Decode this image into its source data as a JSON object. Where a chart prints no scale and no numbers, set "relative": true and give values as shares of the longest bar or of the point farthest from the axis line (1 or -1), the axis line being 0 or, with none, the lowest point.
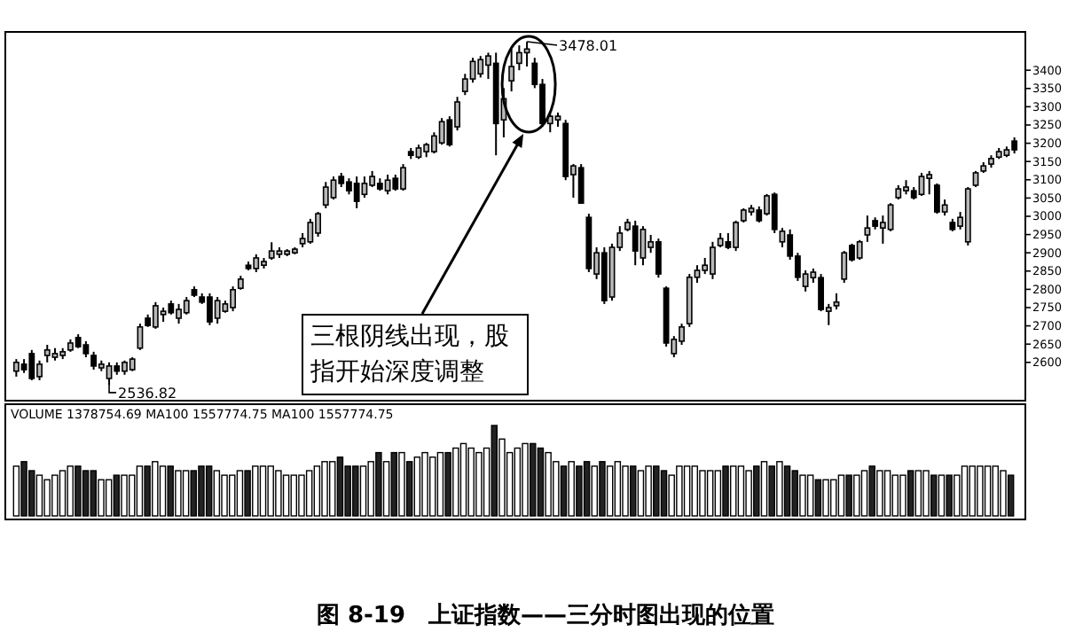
{
  "chart_data": [
    {
      "type": "candlestick",
      "title": "图 8-19　上证指数——三分时图出现的位置",
      "categories": [
        null,
        null,
        null,
        null,
        null,
        null,
        null,
        null,
        null,
        null,
        null,
        null,
        null,
        null,
        null,
        null,
        null,
        null,
        null,
        null,
        null,
        null,
        null,
        null,
        null,
        null,
        null,
        null,
        null,
        null,
        null,
        null,
        null,
        null,
        null,
        null,
        null,
        null,
        null,
        null,
        null,
        null,
        null,
        null,
        null,
        null,
        null,
        null,
        null,
        null,
        null,
        null,
        null,
        null,
        null,
        null,
        null,
        null,
        null,
        null,
        null,
        null,
        null,
        null,
        null,
        null,
        null,
        null,
        null,
        null,
        null,
        null,
        null,
        null,
        null,
        null,
        null,
        null,
        null,
        null,
        null,
        null,
        null,
        null,
        null,
        null,
        null,
        null,
        null,
        null,
        null,
        null,
        null,
        null,
        null,
        null,
        null,
        null,
        null,
        null,
        null,
        null,
        null,
        null,
        null,
        null,
        null,
        null,
        null,
        null,
        null,
        null,
        null,
        null,
        null,
        null,
        null,
        null,
        null,
        null,
        null,
        null,
        null,
        null,
        null,
        null,
        null,
        null,
        null,
        null
      ],
      "ohlc": [
        [
          2576,
          2609,
          2561,
          2600
        ],
        [
          2595,
          2609,
          2571,
          2580
        ],
        [
          2624,
          2634,
          2551,
          2556
        ],
        [
          2561,
          2605,
          2551,
          2595
        ],
        [
          2619,
          2648,
          2600,
          2634
        ],
        [
          2614,
          2639,
          2605,
          2624
        ],
        [
          2619,
          2639,
          2609,
          2629
        ],
        [
          2634,
          2663,
          2629,
          2653
        ],
        [
          2668,
          2677,
          2639,
          2643
        ],
        [
          2648,
          2658,
          2614,
          2624
        ],
        [
          2619,
          2629,
          2580,
          2590
        ],
        [
          2585,
          2605,
          2576,
          2595
        ],
        [
          2556,
          2600,
          2536.82,
          2590
        ],
        [
          2590,
          2600,
          2566,
          2576
        ],
        [
          2576,
          2605,
          2566,
          2600
        ],
        [
          2580,
          2614,
          2576,
          2609
        ],
        [
          2639,
          2706,
          2634,
          2697
        ],
        [
          2721,
          2731,
          2697,
          2701
        ],
        [
          2697,
          2765,
          2692,
          2755
        ],
        [
          2731,
          2750,
          2711,
          2740
        ],
        [
          2760,
          2769,
          2731,
          2736
        ],
        [
          2721,
          2760,
          2706,
          2745
        ],
        [
          2736,
          2779,
          2731,
          2769
        ],
        [
          2799,
          2808,
          2779,
          2784
        ],
        [
          2779,
          2789,
          2760,
          2765
        ],
        [
          2779,
          2789,
          2702,
          2711
        ],
        [
          2721,
          2779,
          2706,
          2769
        ],
        [
          2740,
          2769,
          2736,
          2760
        ],
        [
          2750,
          2808,
          2740,
          2799
        ],
        [
          2803,
          2837,
          2799,
          2828
        ],
        [
          2866,
          2876,
          2852,
          2857
        ],
        [
          2857,
          2896,
          2847,
          2886
        ],
        [
          2866,
          2886,
          2857,
          2876
        ],
        [
          2886,
          2929,
          2881,
          2905
        ],
        [
          2896,
          2915,
          2886,
          2905
        ],
        [
          2896,
          2910,
          2891,
          2905
        ],
        [
          2900,
          2915,
          2896,
          2910
        ],
        [
          2925,
          2954,
          2915,
          2939
        ],
        [
          2930,
          2993,
          2925,
          2983
        ],
        [
          2954,
          3012,
          2944,
          3007
        ],
        [
          3031,
          3094,
          3022,
          3080
        ],
        [
          3051,
          3109,
          3046,
          3099
        ],
        [
          3109,
          3119,
          3080,
          3090
        ],
        [
          3094,
          3104,
          3060,
          3070
        ],
        [
          3090,
          3109,
          3022,
          3041
        ],
        [
          3060,
          3109,
          3051,
          3090
        ],
        [
          3085,
          3124,
          3080,
          3109
        ],
        [
          3090,
          3104,
          3070,
          3075
        ],
        [
          3070,
          3114,
          3060,
          3099
        ],
        [
          3104,
          3114,
          3070,
          3075
        ],
        [
          3075,
          3143,
          3070,
          3133
        ],
        [
          3177,
          3187,
          3157,
          3167
        ],
        [
          3162,
          3196,
          3157,
          3187
        ],
        [
          3177,
          3201,
          3162,
          3196
        ],
        [
          3177,
          3230,
          3172,
          3220
        ],
        [
          3201,
          3269,
          3196,
          3259
        ],
        [
          3264,
          3274,
          3191,
          3196
        ],
        [
          3245,
          3327,
          3235,
          3313
        ],
        [
          3342,
          3390,
          3332,
          3376
        ],
        [
          3376,
          3434,
          3366,
          3424
        ],
        [
          3390,
          3439,
          3380,
          3429
        ],
        [
          3414,
          3448,
          3376,
          3439
        ],
        [
          3419,
          3448,
          3167,
          3254
        ],
        [
          3264,
          3351,
          3216,
          3322
        ],
        [
          3371,
          3458,
          3342,
          3410
        ],
        [
          3419,
          3468,
          3400,
          3448
        ],
        [
          3448,
          3478.01,
          3410,
          3458
        ],
        [
          3419,
          3434,
          3351,
          3361
        ],
        [
          3361,
          3376,
          3245,
          3254
        ],
        [
          3254,
          3284,
          3230,
          3274
        ],
        [
          3264,
          3284,
          3245,
          3274
        ],
        [
          3254,
          3264,
          3099,
          3109
        ],
        [
          3114,
          3143,
          3051,
          3138
        ],
        [
          3133,
          3143,
          3036,
          3036
        ],
        [
          2997,
          3007,
          2847,
          2857
        ],
        [
          2842,
          2915,
          2828,
          2900
        ],
        [
          2900,
          2915,
          2760,
          2769
        ],
        [
          2779,
          2925,
          2769,
          2915
        ],
        [
          2915,
          2973,
          2905,
          2954
        ],
        [
          2964,
          2993,
          2959,
          2983
        ],
        [
          2973,
          2988,
          2866,
          2905
        ],
        [
          2886,
          2973,
          2866,
          2964
        ],
        [
          2915,
          2949,
          2900,
          2930
        ],
        [
          2930,
          2939,
          2832,
          2842
        ],
        [
          2803,
          2808,
          2643,
          2653
        ],
        [
          2624,
          2672,
          2614,
          2663
        ],
        [
          2658,
          2706,
          2648,
          2697
        ],
        [
          2706,
          2842,
          2697,
          2833
        ],
        [
          2833,
          2866,
          2818,
          2852
        ],
        [
          2852,
          2886,
          2842,
          2866
        ],
        [
          2842,
          2930,
          2828,
          2915
        ],
        [
          2920,
          2954,
          2915,
          2939
        ],
        [
          2930,
          2954,
          2910,
          2915
        ],
        [
          2915,
          2988,
          2905,
          2983
        ],
        [
          2988,
          3022,
          2983,
          3017
        ],
        [
          3012,
          3031,
          3002,
          3022
        ],
        [
          3017,
          3027,
          2983,
          2988
        ],
        [
          3007,
          3061,
          3002,
          3056
        ],
        [
          3060,
          3065,
          2954,
          2964
        ],
        [
          2930,
          2968,
          2915,
          2959
        ],
        [
          2949,
          2964,
          2881,
          2891
        ],
        [
          2891,
          2900,
          2823,
          2833
        ],
        [
          2808,
          2852,
          2794,
          2842
        ],
        [
          2832,
          2857,
          2818,
          2847
        ],
        [
          2832,
          2842,
          2740,
          2745
        ],
        [
          2740,
          2760,
          2702,
          2750
        ],
        [
          2755,
          2789,
          2745,
          2765
        ],
        [
          2828,
          2905,
          2818,
          2900
        ],
        [
          2920,
          2925,
          2876,
          2881
        ],
        [
          2886,
          2935,
          2881,
          2930
        ],
        [
          2949,
          3002,
          2930,
          2968
        ],
        [
          2988,
          2997,
          2964,
          2973
        ],
        [
          2968,
          3002,
          2925,
          2983
        ],
        [
          2964,
          3036,
          2959,
          3031
        ],
        [
          3051,
          3085,
          3046,
          3075
        ],
        [
          3070,
          3099,
          3060,
          3080
        ],
        [
          3070,
          3080,
          3046,
          3051
        ],
        [
          3060,
          3119,
          3056,
          3109
        ],
        [
          3104,
          3124,
          3060,
          3114
        ],
        [
          3085,
          3090,
          3007,
          3012
        ],
        [
          3012,
          3046,
          3002,
          3031
        ],
        [
          2983,
          2993,
          2959,
          2964
        ],
        [
          2973,
          3012,
          2964,
          2997
        ],
        [
          2930,
          3080,
          2920,
          3075
        ],
        [
          3085,
          3124,
          3080,
          3119
        ],
        [
          3124,
          3148,
          3119,
          3138
        ],
        [
          3143,
          3167,
          3133,
          3158
        ],
        [
          3162,
          3187,
          3157,
          3177
        ],
        [
          3167,
          3191,
          3162,
          3182
        ],
        [
          3206,
          3216,
          3172,
          3182
        ]
      ],
      "ylim": [
        2500,
        3500
      ],
      "yticks": [
        2600,
        2650,
        2700,
        2750,
        2800,
        2850,
        2900,
        2950,
        3000,
        3050,
        3100,
        3150,
        3200,
        3250,
        3300,
        3350,
        3400
      ],
      "annotations": [
        "三根阴线出现，股指开始深度调整",
        "3478.01",
        "2536.82"
      ]
    },
    {
      "type": "bar",
      "relative": true,
      "annotations": [
        "VOLUME 1378754.69 MA100 1557774.75 MA100 1557774.75"
      ],
      "categories": [
        null,
        null,
        null,
        null,
        null,
        null,
        null,
        null,
        null,
        null,
        null,
        null,
        null,
        null,
        null,
        null,
        null,
        null,
        null,
        null,
        null,
        null,
        null,
        null,
        null,
        null,
        null,
        null,
        null,
        null,
        null,
        null,
        null,
        null,
        null,
        null,
        null,
        null,
        null,
        null,
        null,
        null,
        null,
        null,
        null,
        null,
        null,
        null,
        null,
        null,
        null,
        null,
        null,
        null,
        null,
        null,
        null,
        null,
        null,
        null,
        null,
        null,
        null,
        null,
        null,
        null,
        null,
        null,
        null,
        null,
        null,
        null,
        null,
        null,
        null,
        null,
        null,
        null,
        null,
        null,
        null,
        null,
        null,
        null,
        null,
        null,
        null,
        null,
        null,
        null,
        null,
        null,
        null,
        null,
        null,
        null,
        null,
        null,
        null,
        null,
        null,
        null,
        null,
        null,
        null,
        null,
        null,
        null,
        null,
        null,
        null,
        null,
        null,
        null,
        null,
        null,
        null,
        null,
        null,
        null,
        null,
        null,
        null,
        null,
        null,
        null,
        null,
        null,
        null,
        null
      ],
      "values": [
        0.55,
        0.6,
        0.5,
        0.45,
        0.4,
        0.45,
        0.5,
        0.55,
        0.55,
        0.5,
        0.5,
        0.4,
        0.4,
        0.45,
        0.45,
        0.45,
        0.55,
        0.55,
        0.6,
        0.55,
        0.55,
        0.5,
        0.5,
        0.5,
        0.55,
        0.55,
        0.5,
        0.45,
        0.45,
        0.5,
        0.5,
        0.55,
        0.55,
        0.55,
        0.5,
        0.45,
        0.45,
        0.45,
        0.5,
        0.55,
        0.6,
        0.6,
        0.65,
        0.55,
        0.55,
        0.55,
        0.6,
        0.7,
        0.6,
        0.7,
        0.7,
        0.6,
        0.65,
        0.7,
        0.65,
        0.7,
        0.7,
        0.75,
        0.8,
        0.75,
        0.7,
        0.75,
        1.0,
        0.85,
        0.7,
        0.75,
        0.8,
        0.8,
        0.75,
        0.7,
        0.6,
        0.55,
        0.6,
        0.55,
        0.6,
        0.55,
        0.6,
        0.55,
        0.6,
        0.55,
        0.55,
        0.5,
        0.55,
        0.55,
        0.5,
        0.45,
        0.55,
        0.55,
        0.55,
        0.5,
        0.5,
        0.5,
        0.55,
        0.55,
        0.55,
        0.5,
        0.55,
        0.6,
        0.55,
        0.6,
        0.55,
        0.5,
        0.45,
        0.45,
        0.4,
        0.4,
        0.4,
        0.45,
        0.45,
        0.45,
        0.5,
        0.55,
        0.5,
        0.5,
        0.45,
        0.45,
        0.5,
        0.5,
        0.5,
        0.45,
        0.45,
        0.45,
        0.45,
        0.55,
        0.55,
        0.55,
        0.55,
        0.55,
        0.5,
        0.45
      ],
      "colors": [
        "#ffffff",
        "#222222",
        "#222222",
        "#ffffff",
        "#ffffff",
        "#ffffff",
        "#ffffff",
        "#ffffff",
        "#222222",
        "#222222",
        "#222222",
        "#ffffff",
        "#ffffff",
        "#222222",
        "#ffffff",
        "#ffffff",
        "#ffffff",
        "#222222",
        "#ffffff",
        "#ffffff",
        "#222222",
        "#ffffff",
        "#ffffff",
        "#222222",
        "#222222",
        "#222222",
        "#ffffff",
        "#ffffff",
        "#ffffff",
        "#ffffff",
        "#222222",
        "#ffffff",
        "#ffffff",
        "#ffffff",
        "#ffffff",
        "#ffffff",
        "#ffffff",
        "#ffffff",
        "#ffffff",
        "#ffffff",
        "#ffffff",
        "#ffffff",
        "#222222",
        "#222222",
        "#222222",
        "#ffffff",
        "#ffffff",
        "#222222",
        "#ffffff",
        "#222222",
        "#ffffff",
        "#222222",
        "#ffffff",
        "#ffffff",
        "#ffffff",
        "#ffffff",
        "#222222",
        "#ffffff",
        "#ffffff",
        "#ffffff",
        "#ffffff",
        "#ffffff",
        "#222222",
        "#ffffff",
        "#ffffff",
        "#ffffff",
        "#ffffff",
        "#222222",
        "#222222",
        "#ffffff",
        "#ffffff",
        "#222222",
        "#ffffff",
        "#222222",
        "#222222",
        "#ffffff",
        "#222222",
        "#ffffff",
        "#ffffff",
        "#ffffff",
        "#222222",
        "#ffffff",
        "#ffffff",
        "#222222",
        "#222222",
        "#ffffff",
        "#ffffff",
        "#ffffff",
        "#ffffff",
        "#ffffff",
        "#ffffff",
        "#ffffff",
        "#222222",
        "#ffffff",
        "#ffffff",
        "#ffffff",
        "#222222",
        "#ffffff",
        "#222222",
        "#ffffff",
        "#222222",
        "#222222",
        "#ffffff",
        "#ffffff",
        "#222222",
        "#ffffff",
        "#ffffff",
        "#ffffff",
        "#222222",
        "#ffffff",
        "#ffffff",
        "#222222",
        "#ffffff",
        "#ffffff",
        "#ffffff",
        "#ffffff",
        "#222222",
        "#ffffff",
        "#ffffff",
        "#222222",
        "#ffffff",
        "#222222",
        "#ffffff",
        "#ffffff",
        "#ffffff",
        "#ffffff",
        "#ffffff",
        "#ffffff",
        "#ffffff",
        "#222222"
      ]
    }
  ]
}
